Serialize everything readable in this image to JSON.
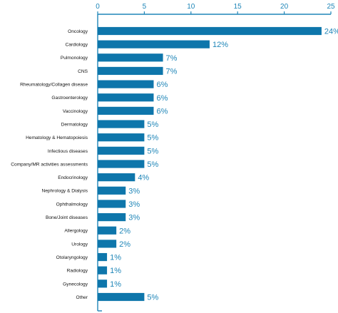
{
  "chart_data": {
    "type": "bar",
    "orientation": "horizontal",
    "title": "",
    "xlabel": "",
    "ylabel": "",
    "xlim": [
      0,
      25
    ],
    "x_ticks": [
      "0",
      "5",
      "10",
      "15",
      "20",
      "25"
    ],
    "grid": false,
    "categories": [
      "Oncology",
      "Cardiology",
      "Pulmonology",
      "CNS",
      "Rheumatology/Collagen disease",
      "Gastroenterology",
      "Vaccinology",
      "Dermatology",
      "Hematology & Hematopoiesis",
      "Infectious diseases",
      "Company/MR activities assessments",
      "Endocrinology",
      "Nephrology & Dialysis",
      "Ophthalmology",
      "Bone/Joint diseases",
      "Allergology",
      "Urology",
      "Otolaryngology",
      "Radiology",
      "Gynecology",
      "Other"
    ],
    "values": [
      24,
      12,
      7,
      7,
      6,
      6,
      6,
      5,
      5,
      5,
      5,
      4,
      3,
      3,
      3,
      2,
      2,
      1,
      1,
      1,
      5
    ],
    "data_labels": [
      "24%",
      "12%",
      "7%",
      "7%",
      "6%",
      "6%",
      "6%",
      "5%",
      "5%",
      "5%",
      "5%",
      "4%",
      "3%",
      "3%",
      "3%",
      "2%",
      "2%",
      "1%",
      "1%",
      "1%",
      "5%"
    ],
    "colors": {
      "bar": "#0e76ab",
      "axis": "#1f86b8",
      "label_text": "#111111",
      "value_text": "#1f86b8"
    }
  }
}
